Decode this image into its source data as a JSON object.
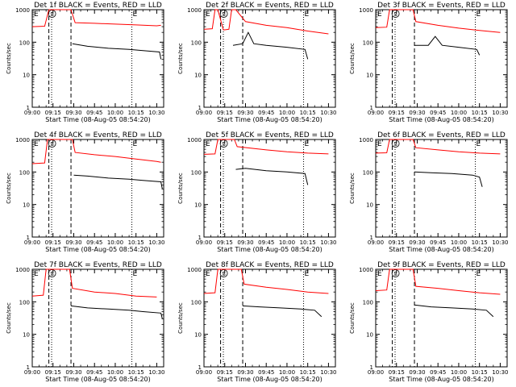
{
  "chart_data": {
    "type": "line",
    "panel_count": 9,
    "columns": 3,
    "yscale": "log",
    "ylim": [
      1,
      1000
    ],
    "y_ticks": [
      1,
      10,
      100,
      1000
    ],
    "y_tick_labels": [
      "1",
      "10",
      "100",
      "1000"
    ],
    "ylabel": "Counts/sec",
    "xlim": [
      "09:00",
      "10:35"
    ],
    "x_ticks": [
      "09:00",
      "09:15",
      "09:30",
      "09:45",
      "10:00",
      "10:15",
      "10:30"
    ],
    "xlabel": "Start Time (08-Aug-05 08:54:20)",
    "xlabel_rows": [
      true,
      true,
      true
    ],
    "series": [
      {
        "name": "BLACK = Events",
        "color": "#000000"
      },
      {
        "name": "RED = LLD",
        "color": "#ff0000"
      }
    ],
    "markers": {
      "entry_label": "E",
      "saa_label": "S",
      "dotted_lines": [
        "09:14",
        "10:12"
      ],
      "dashed_lines": [
        "09:12",
        "09:28"
      ]
    },
    "panels": [
      {
        "title": "Det 1f  BLACK = Events, RED = LLD",
        "shift": 0,
        "red_x": [
          "09:00",
          "09:09",
          "09:12",
          "09:28",
          "09:31",
          "09:45",
          "10:00",
          "10:15",
          "10:30",
          "10:33"
        ],
        "red_y": [
          300,
          310,
          1000,
          1000,
          400,
          380,
          360,
          340,
          320,
          330
        ],
        "black_x": [
          "09:29",
          "09:40",
          "09:55",
          "10:10",
          "10:20",
          "10:32",
          "10:33"
        ],
        "black_y": [
          90,
          75,
          65,
          60,
          55,
          50,
          30
        ]
      },
      {
        "title": "Det 2f  BLACK = Events, RED = LLD",
        "shift": 0,
        "red_x": [
          "09:00",
          "09:06",
          "09:08",
          "09:10",
          "09:14",
          "09:15",
          "09:18",
          "09:20",
          "09:23",
          "09:30",
          "09:45",
          "10:00",
          "10:15",
          "10:30"
        ],
        "red_y": [
          250,
          260,
          1000,
          1000,
          240,
          240,
          250,
          1000,
          1000,
          430,
          330,
          280,
          220,
          180
        ],
        "black_x": [
          "09:21",
          "09:28",
          "09:32",
          "09:36",
          "09:45",
          "10:00",
          "10:13",
          "10:15"
        ],
        "black_y": [
          80,
          90,
          200,
          90,
          80,
          70,
          60,
          30
        ]
      },
      {
        "title": "Det 3f  BLACK = Events, RED = LLD",
        "shift": 0,
        "red_x": [
          "09:00",
          "09:08",
          "09:10",
          "09:27",
          "09:29",
          "09:45",
          "10:00",
          "10:15",
          "10:30"
        ],
        "red_y": [
          280,
          290,
          1000,
          1000,
          430,
          330,
          270,
          230,
          200
        ],
        "black_x": [
          "09:28",
          "09:38",
          "09:43",
          "09:48",
          "10:00",
          "10:13",
          "10:15"
        ],
        "black_y": [
          80,
          80,
          150,
          80,
          70,
          60,
          40
        ]
      },
      {
        "title": "Det 4f  BLACK = Events, RED = LLD",
        "shift": 0,
        "red_x": [
          "09:00",
          "09:09",
          "09:11",
          "09:29",
          "09:31",
          "09:45",
          "10:00",
          "10:15",
          "10:30",
          "10:33"
        ],
        "red_y": [
          180,
          190,
          1000,
          1000,
          400,
          340,
          300,
          250,
          210,
          200
        ],
        "black_x": [
          "09:30",
          "09:40",
          "09:55",
          "10:10",
          "10:20",
          "10:33",
          "10:34"
        ],
        "black_y": [
          80,
          75,
          65,
          60,
          55,
          50,
          30
        ]
      },
      {
        "title": "Det 5f  BLACK = Events, RED = LLD",
        "shift": 0,
        "red_x": [
          "09:00",
          "09:08",
          "09:10",
          "09:22",
          "09:24",
          "09:45",
          "10:00",
          "10:15",
          "10:30"
        ],
        "red_y": [
          350,
          360,
          1000,
          1000,
          600,
          480,
          420,
          380,
          360
        ],
        "black_x": [
          "09:23",
          "09:30",
          "09:45",
          "10:00",
          "10:13",
          "10:15"
        ],
        "black_y": [
          120,
          130,
          110,
          100,
          90,
          40
        ]
      },
      {
        "title": "Det 6f  BLACK = Events, RED = LLD",
        "shift": 0,
        "red_x": [
          "09:00",
          "09:08",
          "09:10",
          "09:27",
          "09:29",
          "09:45",
          "10:00",
          "10:15",
          "10:30"
        ],
        "red_y": [
          380,
          390,
          1000,
          1000,
          560,
          480,
          420,
          380,
          360
        ],
        "black_x": [
          "09:28",
          "09:40",
          "09:55",
          "10:10",
          "10:15",
          "10:17"
        ],
        "black_y": [
          100,
          95,
          90,
          80,
          70,
          35
        ]
      },
      {
        "title": "Det 7f  BLACK = Events, RED = LLD",
        "shift": 0,
        "red_x": [
          "09:00",
          "09:08",
          "09:10",
          "09:27",
          "09:29",
          "09:45",
          "10:00",
          "10:15",
          "10:30"
        ],
        "red_y": [
          150,
          160,
          1000,
          1000,
          260,
          200,
          180,
          150,
          140
        ],
        "black_x": [
          "09:28",
          "09:40",
          "09:55",
          "10:10",
          "10:20",
          "10:33",
          "10:34"
        ],
        "black_y": [
          75,
          65,
          60,
          55,
          50,
          45,
          30
        ]
      },
      {
        "title": "Det 8f  BLACK = Events, RED = LLD",
        "shift": 0,
        "red_x": [
          "09:00",
          "09:08",
          "09:10",
          "09:27",
          "09:29",
          "09:45",
          "10:00",
          "10:15",
          "10:30"
        ],
        "red_y": [
          180,
          190,
          1000,
          1000,
          350,
          280,
          240,
          200,
          180
        ],
        "black_x": [
          "09:28",
          "09:40",
          "09:55",
          "10:10",
          "10:20",
          "10:25"
        ],
        "black_y": [
          75,
          70,
          65,
          60,
          55,
          35
        ]
      },
      {
        "title": "Det 9f  BLACK = Events, RED = LLD",
        "shift": 0,
        "red_x": [
          "09:00",
          "09:08",
          "09:10",
          "09:27",
          "09:29",
          "09:45",
          "10:00",
          "10:15",
          "10:30"
        ],
        "red_y": [
          220,
          230,
          1000,
          1000,
          300,
          260,
          220,
          190,
          170
        ],
        "black_x": [
          "09:28",
          "09:40",
          "09:55",
          "10:10",
          "10:20",
          "10:25"
        ],
        "black_y": [
          80,
          70,
          65,
          60,
          55,
          35
        ]
      }
    ]
  }
}
